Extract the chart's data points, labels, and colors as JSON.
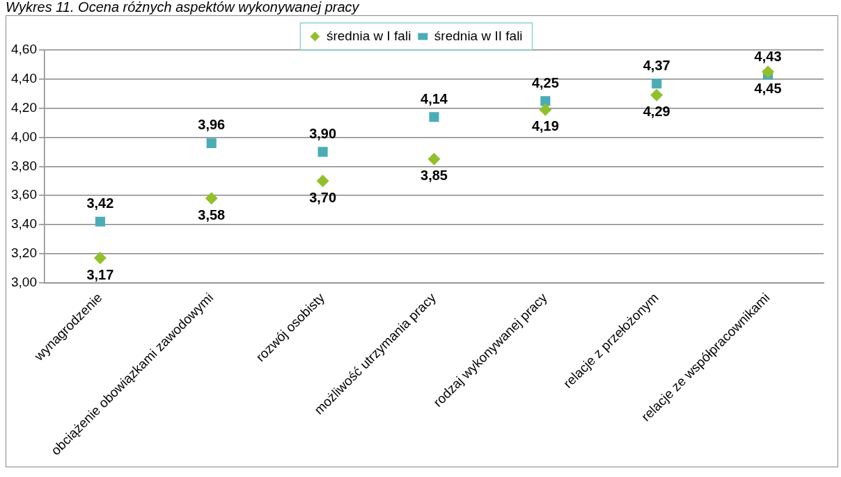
{
  "chart_data": {
    "type": "scatter",
    "title": "Wykres 11. Ocena różnych aspektów wykonywanej pracy",
    "categories": [
      "wynagrodzenie",
      "obciążenie obowiązkami zawodowymi",
      "rozwój osobisty",
      "możliwość utrzymania pracy",
      "rodzaj wykonywanej pracy",
      "relacje z przełożonym",
      "relacje ze współpracownikami"
    ],
    "series": [
      {
        "name": "średnia w I fali",
        "color": "#92c02a",
        "marker": "diamond",
        "values": [
          3.17,
          3.58,
          3.7,
          3.85,
          4.19,
          4.29,
          4.45
        ],
        "value_labels": [
          "3,17",
          "3,58",
          "3,70",
          "3,85",
          "4,19",
          "4,29",
          "4,45"
        ]
      },
      {
        "name": "średnia w II fali",
        "color": "#4bacb6",
        "marker": "square",
        "values": [
          3.42,
          3.96,
          3.9,
          4.14,
          4.25,
          4.37,
          4.43
        ],
        "value_labels": [
          "3,42",
          "3,96",
          "3,90",
          "4,14",
          "4,25",
          "4,37",
          "4,43"
        ]
      }
    ],
    "ylim": [
      3.0,
      4.6
    ],
    "yticks": [
      {
        "value": 3.0,
        "label": "3,00"
      },
      {
        "value": 3.2,
        "label": "3,20"
      },
      {
        "value": 3.4,
        "label": "3,40"
      },
      {
        "value": 3.6,
        "label": "3,60"
      },
      {
        "value": 3.8,
        "label": "3,80"
      },
      {
        "value": 4.0,
        "label": "4,00"
      },
      {
        "value": 4.2,
        "label": "4,20"
      },
      {
        "value": 4.4,
        "label": "4,40"
      },
      {
        "value": 4.6,
        "label": "4,60"
      }
    ],
    "grid": "y",
    "legend": "top"
  }
}
